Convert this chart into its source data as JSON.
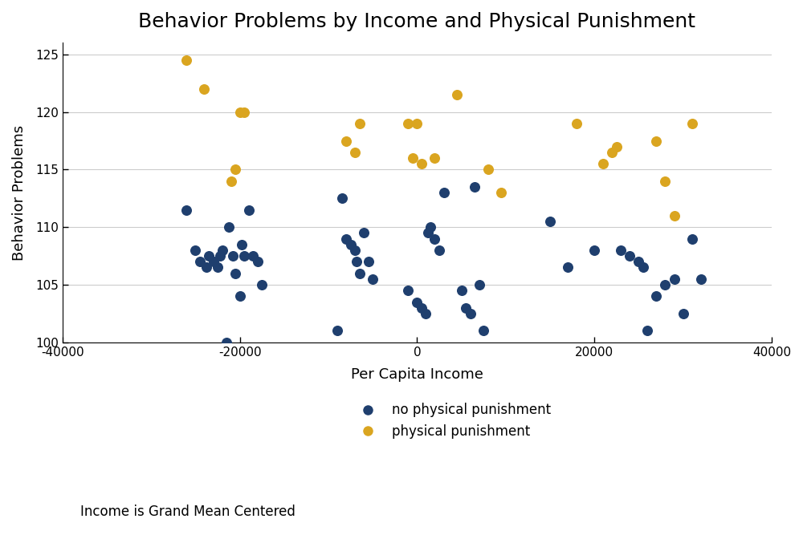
{
  "title": "Behavior Problems by Income and Physical Punishment",
  "xlabel": "Per Capita Income",
  "ylabel": "Behavior Problems",
  "footnote": "Income is Grand Mean Centered",
  "xlim": [
    -40000,
    40000
  ],
  "ylim": [
    100,
    126
  ],
  "xticks": [
    -40000,
    -20000,
    0,
    20000,
    40000
  ],
  "yticks": [
    100,
    105,
    110,
    115,
    120,
    125
  ],
  "color_no_pp": "#1F3F6E",
  "color_pp": "#DAA520",
  "no_pp_x": [
    -26000,
    -25000,
    -24500,
    -23800,
    -23500,
    -23000,
    -22500,
    -22200,
    -22000,
    -21500,
    -21200,
    -20800,
    -20500,
    -20000,
    -19800,
    -19500,
    -19000,
    -18500,
    -18000,
    -17500,
    -8500,
    -8000,
    -7500,
    -7000,
    -6800,
    -6500,
    -6000,
    -5500,
    -5000,
    -9000,
    -1000,
    0,
    500,
    1000,
    1200,
    1500,
    2000,
    2500,
    3000,
    5000,
    5500,
    6000,
    6500,
    7000,
    7500,
    15000,
    17000,
    20000,
    23000,
    24000,
    25000,
    25500,
    26000,
    27000,
    28000,
    29000,
    30000,
    31000,
    32000
  ],
  "no_pp_y": [
    111.5,
    108,
    107,
    106.5,
    107.5,
    107,
    106.5,
    107.5,
    108,
    100,
    110,
    107.5,
    106,
    104,
    108.5,
    107.5,
    111.5,
    107.5,
    107,
    105,
    112.5,
    109,
    108.5,
    108,
    107,
    106,
    109.5,
    107,
    105.5,
    101,
    104.5,
    103.5,
    103,
    102.5,
    109.5,
    110,
    109,
    108,
    113,
    104.5,
    103,
    102.5,
    113.5,
    105,
    101,
    110.5,
    106.5,
    108,
    108,
    107.5,
    107,
    106.5,
    101,
    104,
    105,
    105.5,
    102.5,
    109,
    105.5
  ],
  "pp_x": [
    -26000,
    -24000,
    -21000,
    -20500,
    -20000,
    -19500,
    -8000,
    -7000,
    -6500,
    -1000,
    -500,
    0,
    500,
    2000,
    4500,
    8000,
    9500,
    18000,
    21000,
    22000,
    22500,
    27000,
    28000,
    29000,
    31000
  ],
  "pp_y": [
    124.5,
    122,
    114,
    115,
    120,
    120,
    117.5,
    116.5,
    119,
    119,
    116,
    119,
    115.5,
    116,
    121.5,
    115,
    113,
    119,
    115.5,
    116.5,
    117,
    117.5,
    114,
    111,
    119
  ]
}
